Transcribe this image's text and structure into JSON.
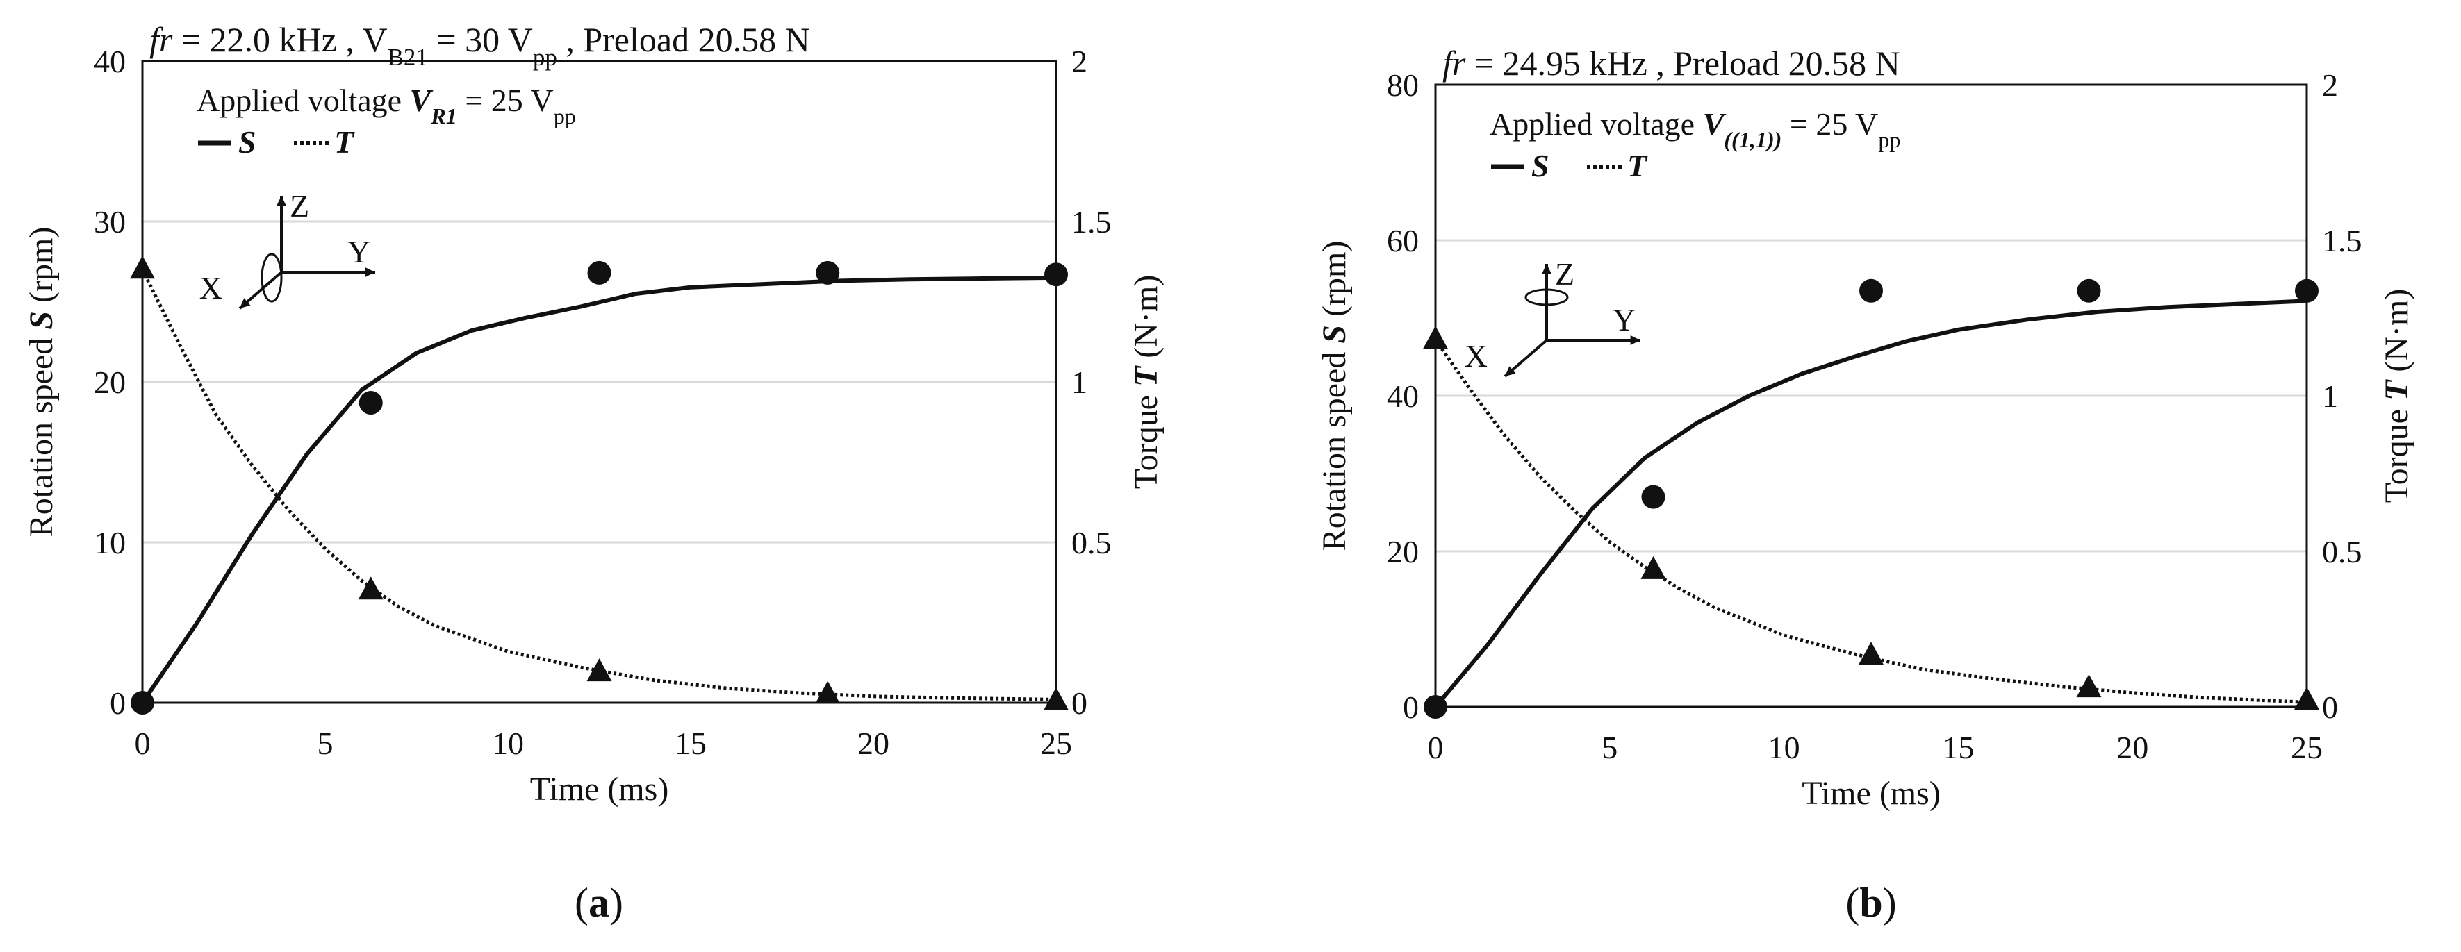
{
  "chart_data": [
    {
      "type": "line",
      "panel_label": "(a)",
      "title": "fr = 22.0 kHz , VB21 = 30 Vpp , Preload 20.58 N",
      "title_parts": {
        "fr_italic": "fr",
        "fr_value": " = 22.0 kHz , V",
        "sub1": "B21",
        "mid": " = 30 V",
        "sub2": "pp",
        "end": " , Preload 20.58 N"
      },
      "annotation": {
        "prefix": "Applied voltage ",
        "var": "V",
        "var_sub": "R1",
        "suffix": " = 25 V",
        "suffix_sub": "pp"
      },
      "legend": {
        "s_label": "S",
        "t_label": "T"
      },
      "xlabel": "Time (ms)",
      "ylabel_prefix": "Rotation speed ",
      "ylabel_var": "S",
      "ylabel_suffix": " (rpm)",
      "y2label_prefix": "Torque ",
      "y2label_var": "T",
      "y2label_suffix": " (N·m)",
      "xlim": [
        0,
        25
      ],
      "ylim": [
        0,
        40
      ],
      "y2lim": [
        0,
        2
      ],
      "xticks": [
        0,
        5,
        10,
        15,
        20,
        25
      ],
      "yticks": [
        0,
        10,
        20,
        30,
        40
      ],
      "y2ticks": [
        "0",
        "0.5",
        "1",
        "1.5",
        "2"
      ],
      "axes_icon": {
        "x": "X",
        "y": "Y",
        "z": "Z"
      },
      "speed_curve": {
        "x": [
          0,
          1.5,
          3,
          4.5,
          6,
          7.5,
          9,
          10.5,
          12,
          13.5,
          15,
          17,
          19,
          21,
          23,
          25
        ],
        "y": [
          0,
          5,
          10.5,
          15.5,
          19.5,
          21.8,
          23.2,
          24,
          24.7,
          25.5,
          25.9,
          26.1,
          26.3,
          26.4,
          26.45,
          26.5
        ]
      },
      "speed_points": {
        "x": [
          0,
          6.25,
          12.5,
          18.75,
          25
        ],
        "y": [
          0,
          18.7,
          26.8,
          26.8,
          26.7
        ]
      },
      "torque_curve": {
        "x": [
          0,
          1,
          2,
          3,
          4,
          5,
          6,
          7,
          8,
          10,
          12,
          14,
          16,
          18,
          20,
          22,
          25
        ],
        "y": [
          1.35,
          1.12,
          0.9,
          0.74,
          0.6,
          0.48,
          0.38,
          0.3,
          0.24,
          0.16,
          0.11,
          0.07,
          0.045,
          0.03,
          0.02,
          0.015,
          0.01
        ]
      },
      "torque_points": {
        "x": [
          0,
          6.25,
          12.5,
          18.75,
          25
        ],
        "y": [
          1.35,
          0.35,
          0.095,
          0.025,
          0.005
        ]
      }
    },
    {
      "type": "line",
      "panel_label": "(b)",
      "title": "fr = 24.95 kHz , Preload 20.58 N",
      "title_parts": {
        "fr_italic": "fr",
        "rest": " = 24.95 kHz , Preload 20.58 N"
      },
      "annotation": {
        "prefix": "Applied voltage ",
        "var": "V",
        "var_sub": "((1,1))",
        "suffix": " = 25 V",
        "suffix_sub": "pp"
      },
      "legend": {
        "s_label": "S",
        "t_label": "T"
      },
      "xlabel": "Time (ms)",
      "ylabel_prefix": "Rotation speed ",
      "ylabel_var": "S",
      "ylabel_suffix": " (rpm)",
      "y2label_prefix": "Torque ",
      "y2label_var": "T",
      "y2label_suffix": " (N·m)",
      "xlim": [
        0,
        25
      ],
      "ylim": [
        0,
        80
      ],
      "y2lim": [
        0,
        2
      ],
      "xticks": [
        0,
        5,
        10,
        15,
        20,
        25
      ],
      "yticks": [
        0,
        20,
        40,
        60,
        80
      ],
      "y2ticks": [
        "0",
        "0.5",
        "1",
        "1.5",
        "2"
      ],
      "axes_icon": {
        "x": "X",
        "y": "Y",
        "z": "Z"
      },
      "speed_curve": {
        "x": [
          0,
          1.5,
          3,
          4.5,
          6,
          7.5,
          9,
          10.5,
          12,
          13.5,
          15,
          17,
          19,
          21,
          23,
          25
        ],
        "y": [
          0,
          8,
          17,
          25.5,
          32,
          36.5,
          40,
          42.8,
          45,
          47,
          48.5,
          49.8,
          50.8,
          51.4,
          51.8,
          52.2
        ]
      },
      "speed_points": {
        "x": [
          0,
          6.25,
          12.5,
          18.75,
          25
        ],
        "y": [
          0,
          27,
          53.5,
          53.5,
          53.5
        ]
      },
      "torque_curve": {
        "x": [
          0,
          1,
          2,
          3,
          4,
          5,
          6,
          7,
          8,
          10,
          12,
          14,
          16,
          18,
          20,
          22,
          25
        ],
        "y": [
          1.18,
          1.02,
          0.87,
          0.74,
          0.63,
          0.53,
          0.45,
          0.38,
          0.32,
          0.23,
          0.17,
          0.12,
          0.09,
          0.065,
          0.045,
          0.03,
          0.015
        ]
      },
      "torque_points": {
        "x": [
          0,
          6.25,
          12.5,
          18.75,
          25
        ],
        "y": [
          1.18,
          0.44,
          0.165,
          0.06,
          0.02
        ]
      }
    }
  ]
}
